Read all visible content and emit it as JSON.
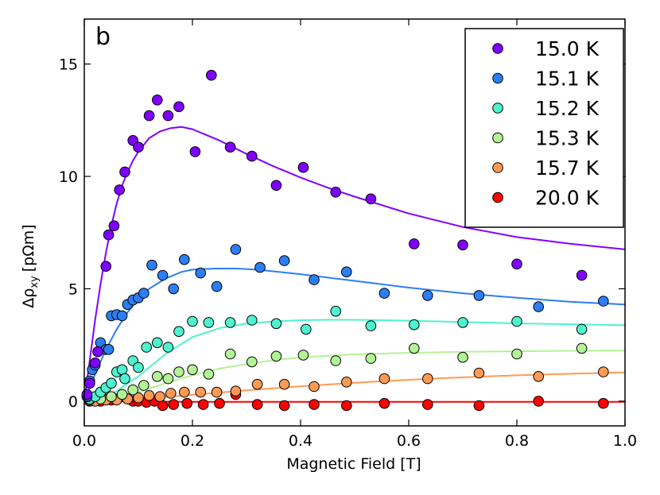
{
  "chart_data": {
    "type": "scatter",
    "panel_label": "b",
    "xlabel": "Magnetic Field [T]",
    "ylabel": "Δρ",
    "ylabel_subscript": "xy",
    "ylabel_unit": "[pΩm]",
    "xlim": [
      0.0,
      1.0
    ],
    "ylim": [
      -1.1,
      17.0
    ],
    "xticks": [
      0.0,
      0.2,
      0.4,
      0.6,
      0.8,
      1.0
    ],
    "xtick_labels": [
      "0.0",
      "0.2",
      "0.4",
      "0.6",
      "0.8",
      "1.0"
    ],
    "yticks": [
      0,
      5,
      10,
      15
    ],
    "ytick_labels": [
      "0",
      "5",
      "10",
      "15"
    ],
    "legend_position": "top-right",
    "series": [
      {
        "name": "15.0 K",
        "color": "#8000ff",
        "points": [
          [
            0.005,
            0.3
          ],
          [
            0.01,
            0.8
          ],
          [
            0.02,
            1.7
          ],
          [
            0.025,
            2.2
          ],
          [
            0.04,
            6.0
          ],
          [
            0.045,
            7.4
          ],
          [
            0.055,
            7.8
          ],
          [
            0.065,
            9.4
          ],
          [
            0.075,
            10.2
          ],
          [
            0.09,
            11.6
          ],
          [
            0.1,
            11.3
          ],
          [
            0.12,
            12.7
          ],
          [
            0.135,
            13.4
          ],
          [
            0.155,
            12.7
          ],
          [
            0.175,
            13.1
          ],
          [
            0.205,
            11.1
          ],
          [
            0.235,
            14.5
          ],
          [
            0.27,
            11.3
          ],
          [
            0.31,
            10.9
          ],
          [
            0.355,
            9.6
          ],
          [
            0.405,
            10.4
          ],
          [
            0.465,
            9.3
          ],
          [
            0.53,
            9.0
          ],
          [
            0.61,
            7.0
          ],
          [
            0.7,
            6.95
          ],
          [
            0.8,
            6.1
          ],
          [
            0.92,
            5.6
          ]
        ],
        "curve": [
          [
            0,
            0
          ],
          [
            0.01,
            1.8
          ],
          [
            0.02,
            3.6
          ],
          [
            0.03,
            5.2
          ],
          [
            0.04,
            6.6
          ],
          [
            0.05,
            7.8
          ],
          [
            0.06,
            8.8
          ],
          [
            0.07,
            9.6
          ],
          [
            0.08,
            10.2
          ],
          [
            0.09,
            10.7
          ],
          [
            0.1,
            11.1
          ],
          [
            0.12,
            11.7
          ],
          [
            0.14,
            12.0
          ],
          [
            0.16,
            12.15
          ],
          [
            0.18,
            12.2
          ],
          [
            0.2,
            12.1
          ],
          [
            0.25,
            11.6
          ],
          [
            0.3,
            11.0
          ],
          [
            0.35,
            10.45
          ],
          [
            0.4,
            9.95
          ],
          [
            0.45,
            9.5
          ],
          [
            0.5,
            9.1
          ],
          [
            0.6,
            8.35
          ],
          [
            0.7,
            7.75
          ],
          [
            0.8,
            7.3
          ],
          [
            0.9,
            7.0
          ],
          [
            1.0,
            6.75
          ]
        ]
      },
      {
        "name": "15.1 K",
        "color": "#2c7ef7",
        "points": [
          [
            0.005,
            0.2
          ],
          [
            0.01,
            0.9
          ],
          [
            0.015,
            1.4
          ],
          [
            0.02,
            1.6
          ],
          [
            0.03,
            2.6
          ],
          [
            0.04,
            2.3
          ],
          [
            0.045,
            2.3
          ],
          [
            0.05,
            3.8
          ],
          [
            0.06,
            3.85
          ],
          [
            0.07,
            3.8
          ],
          [
            0.08,
            4.3
          ],
          [
            0.09,
            4.5
          ],
          [
            0.1,
            4.6
          ],
          [
            0.11,
            4.8
          ],
          [
            0.125,
            6.05
          ],
          [
            0.145,
            5.6
          ],
          [
            0.165,
            5.0
          ],
          [
            0.185,
            6.3
          ],
          [
            0.215,
            5.7
          ],
          [
            0.245,
            5.1
          ],
          [
            0.28,
            6.75
          ],
          [
            0.325,
            5.95
          ],
          [
            0.37,
            6.25
          ],
          [
            0.425,
            5.4
          ],
          [
            0.485,
            5.75
          ],
          [
            0.555,
            4.8
          ],
          [
            0.635,
            4.7
          ],
          [
            0.73,
            4.7
          ],
          [
            0.84,
            4.2
          ],
          [
            0.96,
            4.45
          ]
        ],
        "curve": [
          [
            0,
            0
          ],
          [
            0.01,
            0.6
          ],
          [
            0.02,
            1.2
          ],
          [
            0.04,
            2.3
          ],
          [
            0.06,
            3.2
          ],
          [
            0.08,
            3.95
          ],
          [
            0.1,
            4.55
          ],
          [
            0.12,
            5.0
          ],
          [
            0.15,
            5.45
          ],
          [
            0.18,
            5.75
          ],
          [
            0.2,
            5.85
          ],
          [
            0.24,
            5.9
          ],
          [
            0.28,
            5.9
          ],
          [
            0.32,
            5.85
          ],
          [
            0.36,
            5.75
          ],
          [
            0.4,
            5.65
          ],
          [
            0.5,
            5.35
          ],
          [
            0.6,
            5.05
          ],
          [
            0.7,
            4.8
          ],
          [
            0.8,
            4.6
          ],
          [
            0.9,
            4.42
          ],
          [
            1.0,
            4.3
          ]
        ]
      },
      {
        "name": "15.2 K",
        "color": "#4df3ce",
        "points": [
          [
            0.01,
            0.1
          ],
          [
            0.02,
            0.2
          ],
          [
            0.03,
            0.4
          ],
          [
            0.04,
            0.6
          ],
          [
            0.05,
            0.8
          ],
          [
            0.06,
            1.3
          ],
          [
            0.07,
            1.4
          ],
          [
            0.075,
            1.0
          ],
          [
            0.09,
            1.8
          ],
          [
            0.1,
            1.5
          ],
          [
            0.115,
            2.4
          ],
          [
            0.135,
            2.6
          ],
          [
            0.155,
            2.4
          ],
          [
            0.175,
            3.1
          ],
          [
            0.2,
            3.55
          ],
          [
            0.23,
            3.5
          ],
          [
            0.27,
            3.5
          ],
          [
            0.31,
            3.6
          ],
          [
            0.355,
            3.45
          ],
          [
            0.41,
            3.2
          ],
          [
            0.465,
            4.0
          ],
          [
            0.53,
            3.35
          ],
          [
            0.61,
            3.4
          ],
          [
            0.7,
            3.5
          ],
          [
            0.8,
            3.55
          ],
          [
            0.92,
            3.2
          ]
        ],
        "curve": [
          [
            0,
            0
          ],
          [
            0.05,
            0.3
          ],
          [
            0.1,
            1.1
          ],
          [
            0.15,
            2.1
          ],
          [
            0.2,
            2.85
          ],
          [
            0.25,
            3.25
          ],
          [
            0.3,
            3.45
          ],
          [
            0.35,
            3.55
          ],
          [
            0.4,
            3.6
          ],
          [
            0.45,
            3.62
          ],
          [
            0.5,
            3.62
          ],
          [
            0.6,
            3.58
          ],
          [
            0.7,
            3.52
          ],
          [
            0.8,
            3.46
          ],
          [
            0.9,
            3.42
          ],
          [
            1.0,
            3.38
          ]
        ]
      },
      {
        "name": "15.3 K",
        "color": "#b2f396",
        "points": [
          [
            0.01,
            0.05
          ],
          [
            0.03,
            0.1
          ],
          [
            0.05,
            0.2
          ],
          [
            0.07,
            0.3
          ],
          [
            0.09,
            0.5
          ],
          [
            0.11,
            0.7
          ],
          [
            0.135,
            1.1
          ],
          [
            0.155,
            1.0
          ],
          [
            0.175,
            1.3
          ],
          [
            0.2,
            1.4
          ],
          [
            0.23,
            1.2
          ],
          [
            0.27,
            2.1
          ],
          [
            0.31,
            1.75
          ],
          [
            0.355,
            2.0
          ],
          [
            0.405,
            2.05
          ],
          [
            0.465,
            1.8
          ],
          [
            0.53,
            1.9
          ],
          [
            0.61,
            2.35
          ],
          [
            0.7,
            1.95
          ],
          [
            0.8,
            2.1
          ],
          [
            0.92,
            2.35
          ]
        ],
        "curve": [
          [
            0,
            0
          ],
          [
            0.05,
            0.1
          ],
          [
            0.1,
            0.4
          ],
          [
            0.15,
            0.8
          ],
          [
            0.2,
            1.15
          ],
          [
            0.25,
            1.45
          ],
          [
            0.3,
            1.65
          ],
          [
            0.35,
            1.82
          ],
          [
            0.4,
            1.95
          ],
          [
            0.5,
            2.08
          ],
          [
            0.6,
            2.15
          ],
          [
            0.7,
            2.2
          ],
          [
            0.8,
            2.22
          ],
          [
            0.9,
            2.24
          ],
          [
            1.0,
            2.25
          ]
        ]
      },
      {
        "name": "15.7 K",
        "color": "#ff9a55",
        "points": [
          [
            0.02,
            0.0
          ],
          [
            0.04,
            0.05
          ],
          [
            0.06,
            0.05
          ],
          [
            0.08,
            0.1
          ],
          [
            0.1,
            0.15
          ],
          [
            0.12,
            0.25
          ],
          [
            0.14,
            0.2
          ],
          [
            0.16,
            0.35
          ],
          [
            0.185,
            0.4
          ],
          [
            0.215,
            0.4
          ],
          [
            0.245,
            0.4
          ],
          [
            0.28,
            0.45
          ],
          [
            0.32,
            0.75
          ],
          [
            0.37,
            0.75
          ],
          [
            0.425,
            0.65
          ],
          [
            0.485,
            0.85
          ],
          [
            0.555,
            1.0
          ],
          [
            0.635,
            1.0
          ],
          [
            0.73,
            1.25
          ],
          [
            0.84,
            1.1
          ],
          [
            0.96,
            1.3
          ]
        ],
        "curve": [
          [
            0,
            0
          ],
          [
            0.1,
            0.1
          ],
          [
            0.2,
            0.28
          ],
          [
            0.3,
            0.48
          ],
          [
            0.4,
            0.66
          ],
          [
            0.5,
            0.82
          ],
          [
            0.6,
            0.95
          ],
          [
            0.7,
            1.06
          ],
          [
            0.8,
            1.15
          ],
          [
            0.9,
            1.22
          ],
          [
            1.0,
            1.28
          ]
        ]
      },
      {
        "name": "20.0 K",
        "color": "#ff0000",
        "points": [
          [
            0.01,
            0.0
          ],
          [
            0.02,
            0.05
          ],
          [
            0.03,
            0.0
          ],
          [
            0.04,
            0.1
          ],
          [
            0.05,
            0.05
          ],
          [
            0.06,
            0.1
          ],
          [
            0.07,
            0.2
          ],
          [
            0.08,
            0.1
          ],
          [
            0.09,
            0.0
          ],
          [
            0.1,
            0.0
          ],
          [
            0.115,
            -0.05
          ],
          [
            0.13,
            0.0
          ],
          [
            0.145,
            -0.2
          ],
          [
            0.165,
            -0.15
          ],
          [
            0.19,
            -0.1
          ],
          [
            0.22,
            -0.15
          ],
          [
            0.25,
            -0.1
          ],
          [
            0.28,
            0.3
          ],
          [
            0.32,
            -0.15
          ],
          [
            0.37,
            -0.2
          ],
          [
            0.425,
            -0.15
          ],
          [
            0.485,
            -0.2
          ],
          [
            0.555,
            -0.1
          ],
          [
            0.635,
            -0.15
          ],
          [
            0.73,
            -0.2
          ],
          [
            0.84,
            0.0
          ],
          [
            0.96,
            -0.1
          ]
        ],
        "curve": [
          [
            0,
            0
          ],
          [
            0.05,
            0.0
          ],
          [
            0.1,
            -0.02
          ],
          [
            0.2,
            -0.03
          ],
          [
            0.3,
            -0.03
          ],
          [
            0.4,
            -0.03
          ],
          [
            0.5,
            -0.03
          ],
          [
            0.6,
            -0.03
          ],
          [
            0.7,
            -0.03
          ],
          [
            0.8,
            -0.03
          ],
          [
            0.9,
            -0.03
          ],
          [
            1.0,
            -0.03
          ]
        ]
      }
    ]
  }
}
